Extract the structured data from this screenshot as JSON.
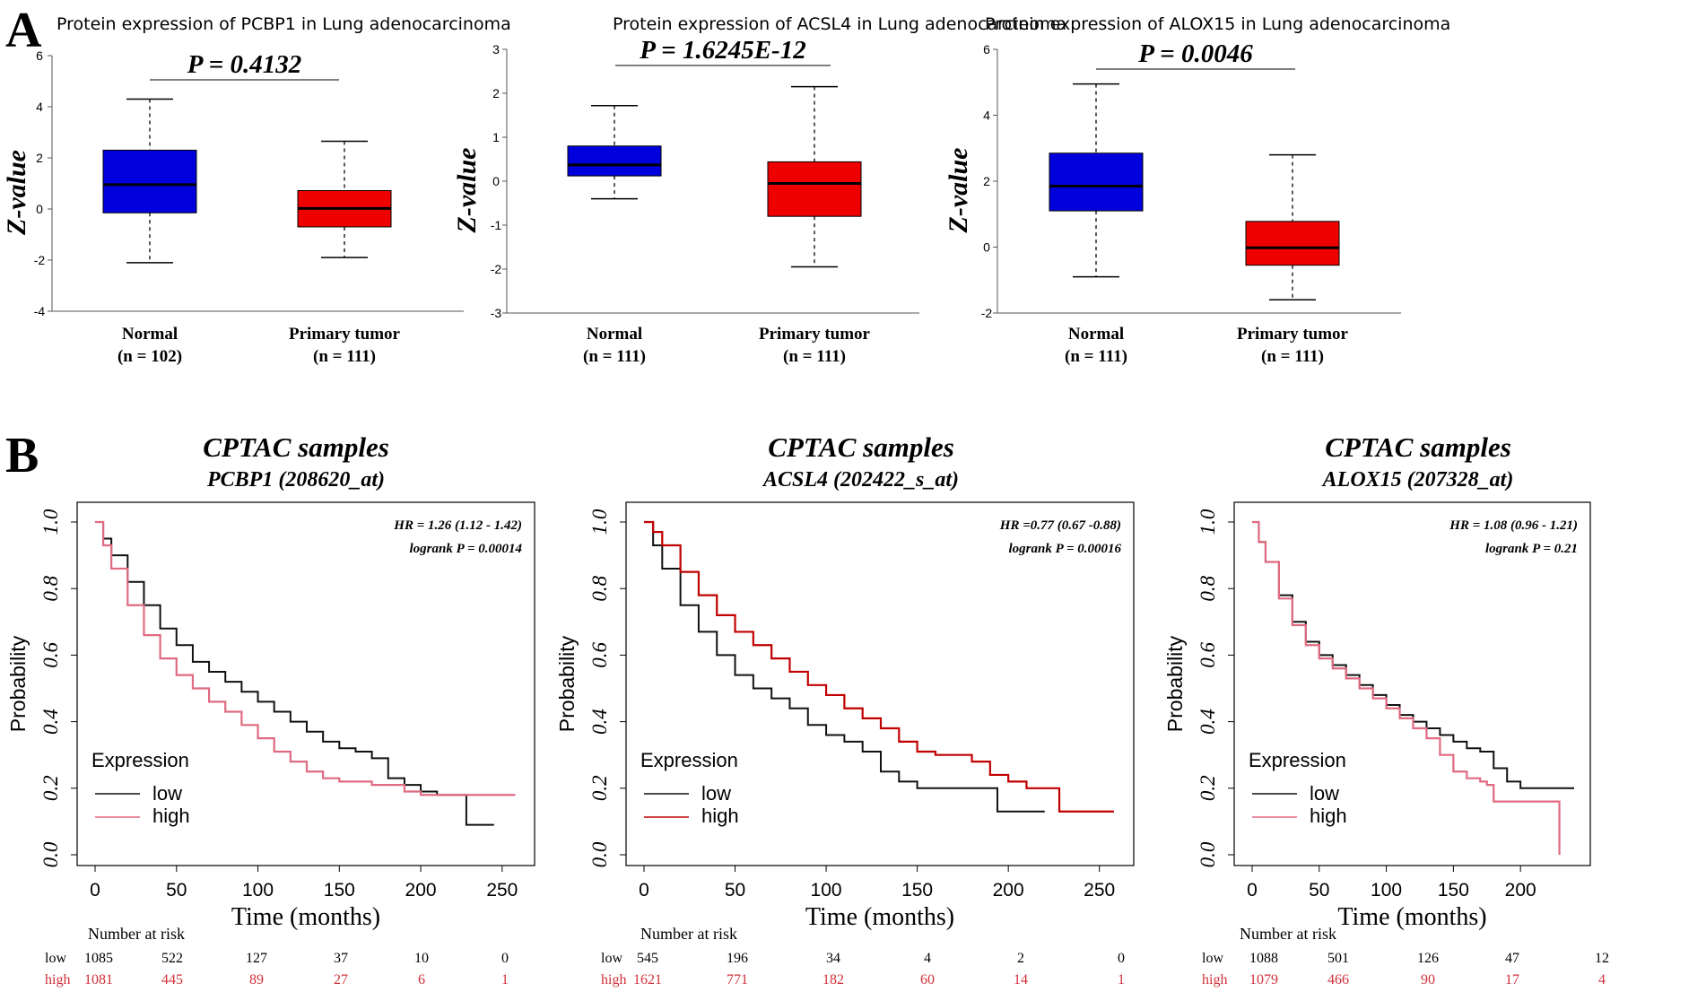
{
  "panels": {
    "a": "A",
    "b": "B"
  },
  "colors": {
    "normal": "#0000dd",
    "tumor": "#ee0000",
    "km_low": "#111111",
    "km_high_pink": "#e06a80",
    "km_high_red": "#c00000"
  },
  "chart_data": [
    {
      "type": "box",
      "title": "Protein expression of PCBP1 in Lung adenocarcinoma",
      "ylabel": "Z-value",
      "ylim": [
        -4,
        6
      ],
      "yticks": [
        "6",
        "4",
        "2",
        "0",
        "-2",
        "-4"
      ],
      "pvalue": "P = 0.4132",
      "groups": [
        {
          "name": "Normal",
          "n": "(n = 102)",
          "whisker_low": -2.1,
          "q1": -0.15,
          "median": 0.95,
          "q3": 2.3,
          "whisker_high": 4.3
        },
        {
          "name": "Primary tumor",
          "n": "(n = 111)",
          "whisker_low": -1.9,
          "q1": -0.7,
          "median": 0.02,
          "q3": 0.72,
          "whisker_high": 2.65
        }
      ]
    },
    {
      "type": "box",
      "title": "Protein expression of ACSL4 in Lung adenocarcinoma",
      "ylabel": "Z-value",
      "ylim": [
        -3,
        3
      ],
      "yticks": [
        "3",
        "2",
        "1",
        "0",
        "-1",
        "-2",
        "-3"
      ],
      "pvalue": "P = 1.6245E-12",
      "groups": [
        {
          "name": "Normal",
          "n": "(n = 111)",
          "whisker_low": -0.4,
          "q1": 0.12,
          "median": 0.37,
          "q3": 0.8,
          "whisker_high": 1.72
        },
        {
          "name": "Primary tumor",
          "n": "(n = 111)",
          "whisker_low": -1.95,
          "q1": -0.8,
          "median": -0.05,
          "q3": 0.44,
          "whisker_high": 2.15
        }
      ]
    },
    {
      "type": "box",
      "title": "Protein expression of ALOX15 in Lung adenocarcinoma",
      "ylabel": "Z-value",
      "ylim": [
        -2,
        6
      ],
      "yticks": [
        "6",
        "4",
        "2",
        "0",
        "-2"
      ],
      "pvalue": "P = 0.0046",
      "groups": [
        {
          "name": "Normal",
          "n": "(n = 111)",
          "whisker_low": -0.9,
          "q1": 1.1,
          "median": 1.85,
          "q3": 2.85,
          "whisker_high": 4.95
        },
        {
          "name": "Primary tumor",
          "n": "(n = 111)",
          "whisker_low": -1.6,
          "q1": -0.55,
          "median": -0.02,
          "q3": 0.78,
          "whisker_high": 2.8
        }
      ]
    },
    {
      "type": "line",
      "title": "CPTAC samples",
      "subtitle": "PCBP1 (208620_at)",
      "xlabel": "Time (months)",
      "ylabel": "Probability",
      "xlim": [
        0,
        260
      ],
      "ylim": [
        0,
        1
      ],
      "xticks": [
        "0",
        "50",
        "100",
        "150",
        "200",
        "250"
      ],
      "yticks": [
        "0.0",
        "0.2",
        "0.4",
        "0.6",
        "0.8",
        "1.0"
      ],
      "hr": "HR = 1.26 (1.12 - 1.42)",
      "logrank": "logrank P = 0.00014",
      "legend": {
        "title": "Expression",
        "low": "low",
        "high": "high",
        "high_color": "#e06a80"
      },
      "series": [
        {
          "name": "low",
          "x": [
            0,
            5,
            10,
            20,
            30,
            40,
            50,
            60,
            70,
            80,
            90,
            100,
            110,
            120,
            130,
            140,
            150,
            160,
            170,
            180,
            190,
            200,
            210,
            220,
            228,
            228,
            245
          ],
          "y": [
            1.0,
            0.95,
            0.9,
            0.82,
            0.75,
            0.68,
            0.63,
            0.58,
            0.55,
            0.52,
            0.49,
            0.46,
            0.43,
            0.4,
            0.37,
            0.34,
            0.32,
            0.31,
            0.29,
            0.23,
            0.21,
            0.19,
            0.18,
            0.18,
            0.18,
            0.09,
            0.09
          ]
        },
        {
          "name": "high",
          "x": [
            0,
            5,
            10,
            20,
            30,
            40,
            50,
            60,
            70,
            80,
            90,
            100,
            110,
            120,
            130,
            140,
            150,
            170,
            190,
            200,
            220,
            258
          ],
          "y": [
            1.0,
            0.93,
            0.86,
            0.75,
            0.66,
            0.59,
            0.54,
            0.5,
            0.46,
            0.43,
            0.39,
            0.35,
            0.31,
            0.28,
            0.25,
            0.23,
            0.22,
            0.21,
            0.19,
            0.18,
            0.18,
            0.18
          ]
        }
      ],
      "risk": {
        "head": "Number at risk",
        "low_label": "low",
        "high_label": "high",
        "low": [
          "1085",
          "522",
          "127",
          "37",
          "10",
          "0"
        ],
        "high": [
          "1081",
          "445",
          "89",
          "27",
          "6",
          "1"
        ]
      }
    },
    {
      "type": "line",
      "title": "CPTAC samples",
      "subtitle": "ACSL4 (202422_s_at)",
      "xlabel": "Time (months)",
      "ylabel": "Probability",
      "xlim": [
        0,
        260
      ],
      "ylim": [
        0,
        1
      ],
      "xticks": [
        "0",
        "50",
        "100",
        "150",
        "200",
        "250"
      ],
      "yticks": [
        "0.0",
        "0.2",
        "0.4",
        "0.6",
        "0.8",
        "1.0"
      ],
      "hr": "HR =0.77 (0.67 -0.88)",
      "logrank": "logrank P = 0.00016",
      "legend": {
        "title": "Expression",
        "low": "low",
        "high": "high",
        "high_color": "#c00000"
      },
      "series": [
        {
          "name": "low",
          "x": [
            0,
            5,
            10,
            20,
            30,
            40,
            50,
            60,
            70,
            80,
            90,
            100,
            110,
            120,
            130,
            140,
            150,
            160,
            194,
            194,
            220
          ],
          "y": [
            1.0,
            0.93,
            0.86,
            0.75,
            0.67,
            0.6,
            0.54,
            0.5,
            0.47,
            0.44,
            0.39,
            0.36,
            0.34,
            0.31,
            0.25,
            0.22,
            0.2,
            0.2,
            0.2,
            0.13,
            0.13
          ]
        },
        {
          "name": "high",
          "x": [
            0,
            5,
            10,
            20,
            30,
            40,
            50,
            60,
            70,
            80,
            90,
            100,
            110,
            120,
            130,
            140,
            150,
            160,
            170,
            180,
            190,
            200,
            210,
            228,
            228,
            258
          ],
          "y": [
            1.0,
            0.97,
            0.93,
            0.85,
            0.78,
            0.72,
            0.67,
            0.63,
            0.59,
            0.55,
            0.51,
            0.48,
            0.44,
            0.41,
            0.38,
            0.34,
            0.31,
            0.3,
            0.3,
            0.28,
            0.24,
            0.22,
            0.2,
            0.2,
            0.13,
            0.13
          ]
        }
      ],
      "risk": {
        "head": "Number at risk",
        "low_label": "low",
        "high_label": "high",
        "low": [
          "545",
          "196",
          "34",
          "4",
          "2",
          "0"
        ],
        "high": [
          "1621",
          "771",
          "182",
          "60",
          "14",
          "1"
        ]
      }
    },
    {
      "type": "line",
      "title": "CPTAC samples",
      "subtitle": "ALOX15 (207328_at)",
      "xlabel": "Time (months)",
      "ylabel": "Probability",
      "xlim": [
        0,
        240
      ],
      "ylim": [
        0,
        1
      ],
      "xticks": [
        "0",
        "50",
        "100",
        "150",
        "200"
      ],
      "yticks": [
        "0.0",
        "0.2",
        "0.4",
        "0.6",
        "0.8",
        "1.0"
      ],
      "hr": "HR = 1.08 (0.96 - 1.21)",
      "logrank": "logrank P = 0.21",
      "legend": {
        "title": "Expression",
        "low": "low",
        "high": "high",
        "high_color": "#e06a80"
      },
      "series": [
        {
          "name": "low",
          "x": [
            0,
            5,
            10,
            20,
            30,
            40,
            50,
            60,
            70,
            80,
            90,
            100,
            110,
            120,
            130,
            140,
            150,
            160,
            170,
            180,
            190,
            200,
            215,
            240
          ],
          "y": [
            1.0,
            0.94,
            0.88,
            0.78,
            0.7,
            0.64,
            0.6,
            0.57,
            0.54,
            0.51,
            0.48,
            0.45,
            0.42,
            0.4,
            0.38,
            0.36,
            0.34,
            0.32,
            0.31,
            0.26,
            0.22,
            0.2,
            0.2,
            0.2
          ]
        },
        {
          "name": "high",
          "x": [
            0,
            5,
            10,
            20,
            30,
            40,
            50,
            60,
            70,
            80,
            90,
            100,
            110,
            120,
            130,
            140,
            150,
            160,
            170,
            175,
            180,
            220,
            229,
            229
          ],
          "y": [
            1.0,
            0.94,
            0.88,
            0.77,
            0.69,
            0.63,
            0.59,
            0.56,
            0.53,
            0.5,
            0.47,
            0.44,
            0.41,
            0.38,
            0.35,
            0.3,
            0.25,
            0.23,
            0.22,
            0.21,
            0.16,
            0.16,
            0.16,
            0.0
          ]
        }
      ],
      "risk": {
        "head": "Number at risk",
        "low_label": "low",
        "high_label": "high",
        "low": [
          "1088",
          "501",
          "126",
          "47",
          "12"
        ],
        "high": [
          "1079",
          "466",
          "90",
          "17",
          "4"
        ]
      }
    }
  ]
}
